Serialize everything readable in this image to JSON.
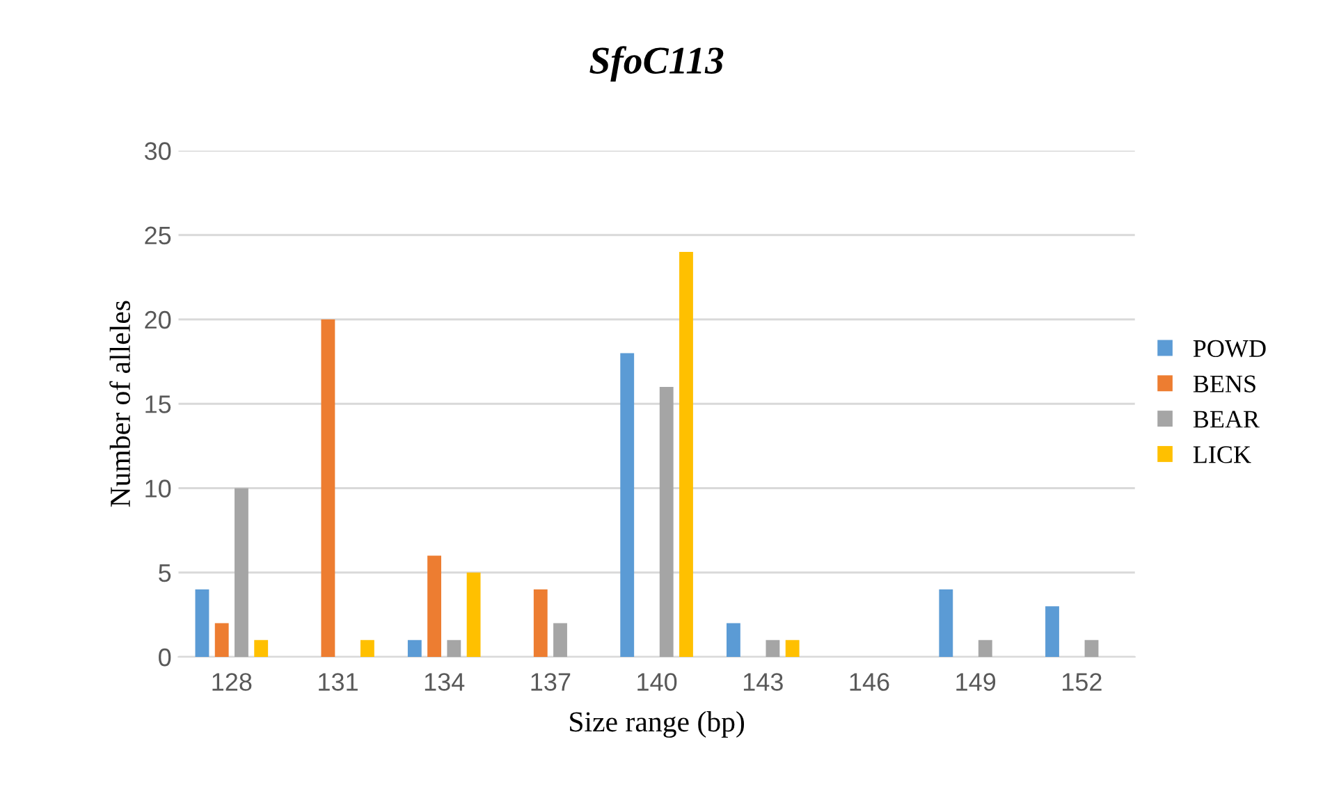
{
  "chart_data": {
    "type": "bar",
    "title": "SfoC113",
    "xlabel": "Size range (bp)",
    "ylabel": "Number of alleles",
    "categories": [
      "128",
      "131",
      "134",
      "137",
      "140",
      "143",
      "146",
      "149",
      "152"
    ],
    "series": [
      {
        "name": "POWD",
        "color": "#5b9bd5",
        "values": [
          4,
          0,
          1,
          0,
          18,
          2,
          0,
          4,
          3
        ]
      },
      {
        "name": "BENS",
        "color": "#ed7d31",
        "values": [
          2,
          20,
          6,
          4,
          0,
          0,
          0,
          0,
          0
        ]
      },
      {
        "name": "BEAR",
        "color": "#a5a5a5",
        "values": [
          10,
          0,
          1,
          2,
          16,
          1,
          0,
          1,
          1
        ]
      },
      {
        "name": "LICK",
        "color": "#ffc000",
        "values": [
          1,
          1,
          5,
          0,
          24,
          1,
          0,
          0,
          0
        ]
      }
    ],
    "ylim": [
      0,
      30
    ],
    "yticks": [
      0,
      5,
      10,
      15,
      20,
      25,
      30
    ],
    "grid": "y",
    "legend": "right"
  }
}
